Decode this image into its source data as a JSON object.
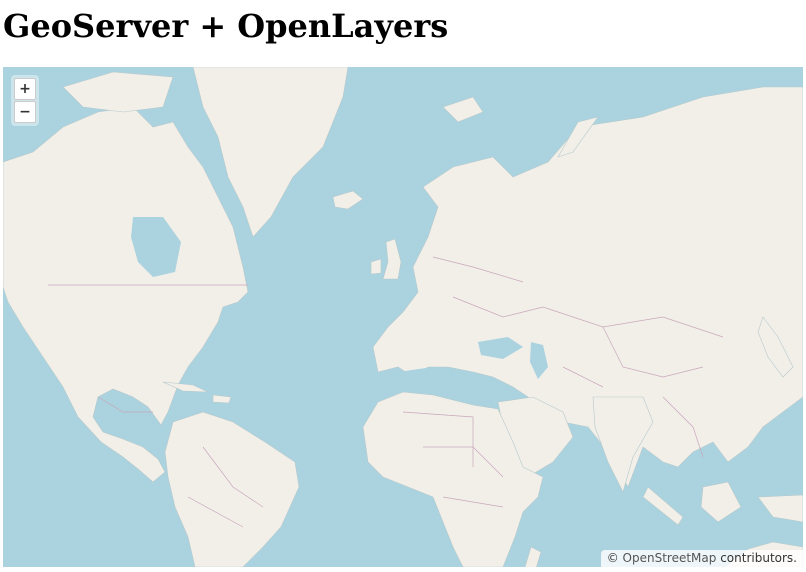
{
  "page": {
    "title": "GeoServer + OpenLayers"
  },
  "map": {
    "zoom_in_label": "+",
    "zoom_out_label": "−",
    "attribution": {
      "prefix": "© ",
      "link": "OpenStreetMap",
      "suffix": " contributors."
    },
    "colors": {
      "water": "#aad3df",
      "land": "#f2efe9",
      "border": "#c8a7bb",
      "coast": "#b7c9cc"
    }
  }
}
